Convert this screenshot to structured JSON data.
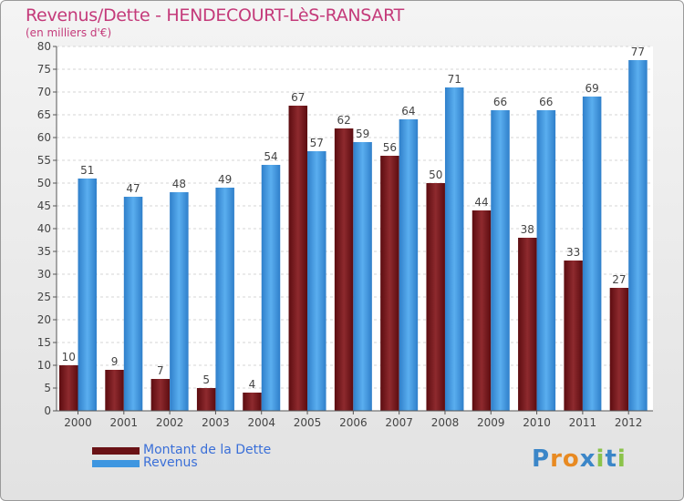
{
  "chart_data": {
    "type": "bar",
    "title": "Revenus/Dette - HENDECOURT-LèS-RANSART",
    "subtitle": "(en milliers d'€)",
    "categories": [
      "2000",
      "2001",
      "2002",
      "2003",
      "2004",
      "2005",
      "2006",
      "2007",
      "2008",
      "2009",
      "2010",
      "2011",
      "2012"
    ],
    "series": [
      {
        "name": "Montant de la Dette",
        "color": "#7a1a1e",
        "values": [
          10,
          9,
          7,
          5,
          4,
          67,
          62,
          56,
          50,
          44,
          38,
          33,
          27
        ]
      },
      {
        "name": "Revenus",
        "color": "#3e96e0",
        "values": [
          51,
          47,
          48,
          49,
          54,
          57,
          59,
          64,
          71,
          66,
          66,
          69,
          77
        ]
      }
    ],
    "ylim": [
      0,
      80
    ],
    "ytick_step": 5,
    "grid": true,
    "xlabel": "",
    "ylabel": "",
    "legend_position": "bottom-left"
  },
  "legend": {
    "dette_label": "Montant de la Dette",
    "revenus_label": "Revenus"
  },
  "logo": {
    "text": "Proxiti"
  }
}
